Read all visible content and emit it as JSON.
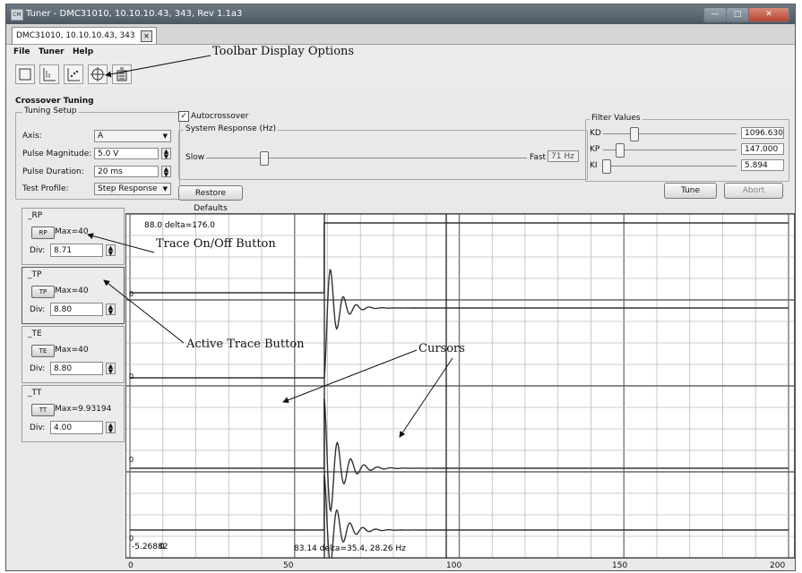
{
  "window": {
    "title": "Tuner - DMC31010, 10.10.10.43, 343, Rev 1.1a3",
    "app_icon": "tuner-app-icon",
    "controls": [
      "minimize",
      "maximize",
      "close"
    ]
  },
  "tabs": [
    {
      "label": "DMC31010, 10.10.10.43, 343"
    }
  ],
  "menu": [
    "File",
    "Tuner",
    "Help"
  ],
  "toolbar": {
    "icons": [
      "zoom-fit-icon",
      "scale-axis-icon",
      "chart-points-icon",
      "cursor-tool-icon",
      "export-data-icon"
    ]
  },
  "crossover": {
    "title": "Crossover Tuning",
    "setup": {
      "title": "Tuning Setup",
      "axis_label": "Axis:",
      "axis_value": "A",
      "pulse_magnitude_label": "Pulse Magnitude:",
      "pulse_magnitude_value": "5.0 V",
      "pulse_duration_label": "Pulse Duration:",
      "pulse_duration_value": "20 ms",
      "test_profile_label": "Test Profile:",
      "test_profile_value": "Step Response"
    },
    "autocrossover": {
      "label": "Autocrossover",
      "checked": true
    },
    "system_response": {
      "title": "System Response (Hz)",
      "slow_label": "Slow",
      "fast_label": "Fast",
      "value": "71 Hz",
      "level": 0.18
    },
    "restore_defaults": "Restore Defaults",
    "filter": {
      "title": "Filter Values",
      "kd_label": "KD",
      "kd_value": "1096.630",
      "kd_level": 0.23,
      "kp_label": "KP",
      "kp_value": "147.000",
      "kp_level": 0.12,
      "ki_label": "KI",
      "ki_value": "5.894",
      "ki_level": 0.02
    },
    "tune_label": "Tune",
    "abort_label": "Abort"
  },
  "traces": [
    {
      "name": "_RP",
      "button": "RP",
      "max": "Max=40",
      "div_label": "Div:",
      "div": "8.71"
    },
    {
      "name": "_TP",
      "button": "TP",
      "max": "Max=40",
      "div_label": "Div:",
      "div": "8.80"
    },
    {
      "name": "_TE",
      "button": "TE",
      "max": "Max=40",
      "div_label": "Div:",
      "div": "8.80"
    },
    {
      "name": "_TT",
      "button": "TT",
      "max": "Max=9.93194",
      "div_label": "Div:",
      "div": "4.00"
    }
  ],
  "plot": {
    "cursor_top": "88.0 delta=176.0",
    "cursor_bottom": "83.14 delta=35.4, 28.26 Hz",
    "ymin_label": "-5.26882",
    "ymin_label_overlap": "0",
    "zero_labels": [
      "0",
      "0",
      "0",
      "0"
    ],
    "x_ticks": [
      "0",
      "50",
      "100",
      "150",
      "200"
    ]
  },
  "annotations": {
    "toolbar": "Toolbar Display Options",
    "trace_on_off": "Trace On/Off Button",
    "active_trace": "Active Trace Button",
    "cursors": "Cursors"
  }
}
